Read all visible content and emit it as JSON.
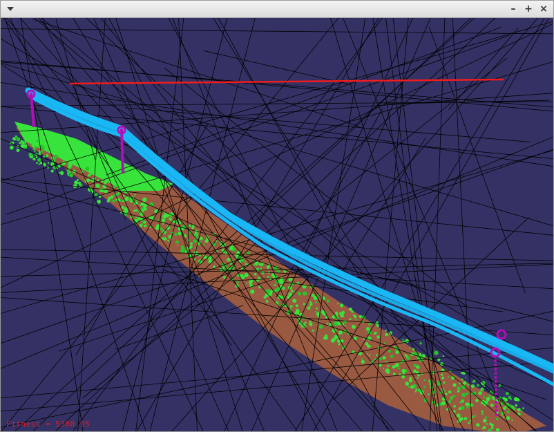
{
  "window": {
    "title": "",
    "controls": {
      "menu_icon": "chevron-down-icon",
      "minimize_glyph": "–",
      "maximize_glyph": "+",
      "close_glyph": "×"
    }
  },
  "viewport": {
    "background": "#343265",
    "colors": {
      "terrain": "#9a5941",
      "vegetation": "#38e33b",
      "vegetation_dark": "#24c62a",
      "power_lines": "#1ab7f5",
      "towers": "#b20fb8",
      "fitted_line": "#f01c1c",
      "random_lines": "#000000"
    },
    "status": {
      "fitness_label": "Fitness = 5380.95"
    }
  }
}
